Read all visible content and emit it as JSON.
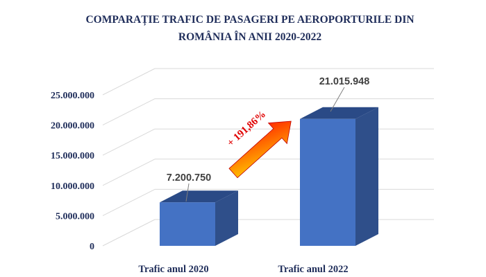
{
  "chart_data": {
    "type": "bar",
    "title_lines": [
      "COMPARAȚIE TRAFIC DE PASAGERI PE AEROPORTURILE DIN",
      "ROMÂNIA ÎN ANII 2020-2022"
    ],
    "categories": [
      "Trafic anul 2020",
      "Trafic anul 2022"
    ],
    "values": [
      7200750,
      21015948
    ],
    "data_labels": [
      "7.200.750",
      "21.015.948"
    ],
    "yticks": [
      0,
      5000000,
      10000000,
      15000000,
      20000000,
      25000000
    ],
    "ytick_labels": [
      "0",
      "5.000.000",
      "10.000.000",
      "15.000.000",
      "20.000.000",
      "25.000.000"
    ],
    "ylim": [
      0,
      25000000
    ],
    "grid": true,
    "three_d": true,
    "annotation": {
      "text": "+ 191,86%",
      "type": "arrow-up-right"
    },
    "colors": {
      "bar_front": "#4472c4",
      "bar_side": "#2f4f8a",
      "bar_top": "#2a4a86",
      "axis_text": "#1f2d5a",
      "arrow_start": "#ffd400",
      "arrow_end": "#ff1a00",
      "annotation_text": "#e00000"
    }
  }
}
